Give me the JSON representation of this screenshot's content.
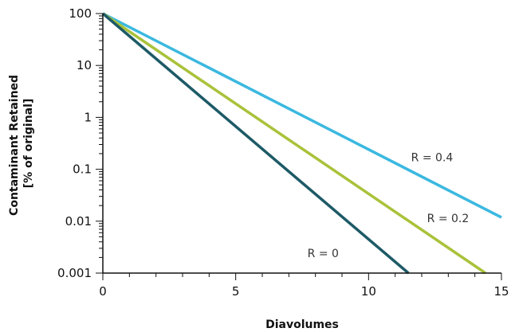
{
  "chart_data": {
    "type": "line",
    "title": "",
    "xlabel": "Diavolumes",
    "ylabel": [
      "Contaminant Retained",
      "[% of original]"
    ],
    "xlim": [
      0,
      15
    ],
    "ylim": [
      0.001,
      100
    ],
    "yscale": "log",
    "grid": false,
    "x_ticks": [
      0,
      5,
      10,
      15
    ],
    "x_tick_labels": [
      "0",
      "5",
      "10",
      "15"
    ],
    "y_ticks": [
      100,
      10,
      1,
      0.1,
      0.01,
      0.001
    ],
    "y_tick_labels": [
      "100",
      "10",
      "1",
      "0.1",
      "0.01",
      "0.001"
    ],
    "series": [
      {
        "name": "R = 0.4",
        "color": "#3ab8e0",
        "x": [
          0,
          15
        ],
        "y": [
          100,
          0.0118
        ]
      },
      {
        "name": "R = 0.2",
        "color": "#a9c23a",
        "x": [
          0,
          14.4
        ],
        "y": [
          100,
          0.001
        ]
      },
      {
        "name": "R = 0",
        "color": "#1d5a66",
        "x": [
          0,
          11.5
        ],
        "y": [
          100,
          0.001
        ]
      }
    ],
    "annotations": [
      {
        "text": "R = 0.4",
        "series": 0,
        "x": 11.6,
        "y": 0.17
      },
      {
        "text": "R = 0.2",
        "series": 1,
        "x": 12.2,
        "y": 0.0115
      },
      {
        "text": "R = 0",
        "series": 2,
        "x": 7.7,
        "y": 0.0024
      }
    ]
  }
}
